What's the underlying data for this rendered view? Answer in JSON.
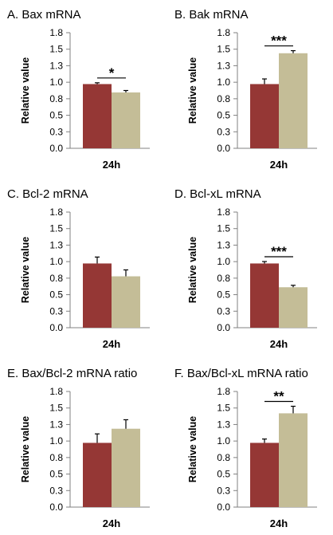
{
  "colors": {
    "control": "#953735",
    "treated": "#c4bd97",
    "axis": "#808080",
    "errorbar": "#000000"
  },
  "chart_data": [
    {
      "type": "bar",
      "title": "A. Bax mRNA",
      "ylabel": "Relative value",
      "xlabel": "",
      "categories": [
        "24h"
      ],
      "ylim": [
        0,
        1.8
      ],
      "yticks": [
        "0.0",
        "0.3",
        "0.5",
        "0.8",
        "1.0",
        "1.3",
        "1.5",
        "1.8"
      ],
      "series": [
        {
          "values": [
            1.0
          ],
          "errors": [
            0.02
          ]
        },
        {
          "values": [
            0.87
          ],
          "errors": [
            0.03
          ]
        }
      ],
      "significance": "*"
    },
    {
      "type": "bar",
      "title": "B. Bak mRNA",
      "ylabel": "Relative value",
      "xlabel": "",
      "categories": [
        "24h"
      ],
      "ylim": [
        0,
        1.8
      ],
      "yticks": [
        "0.0",
        "0.3",
        "0.5",
        "0.8",
        "1.0",
        "1.3",
        "1.5",
        "1.8"
      ],
      "series": [
        {
          "values": [
            1.0
          ],
          "errors": [
            0.08
          ]
        },
        {
          "values": [
            1.48
          ],
          "errors": [
            0.04
          ]
        }
      ],
      "significance": "***"
    },
    {
      "type": "bar",
      "title": "C. Bcl-2 mRNA",
      "ylabel": "Relative value",
      "xlabel": "",
      "categories": [
        "24h"
      ],
      "ylim": [
        0,
        1.8
      ],
      "yticks": [
        "0.0",
        "0.3",
        "0.5",
        "0.8",
        "1.0",
        "1.3",
        "1.5",
        "1.8"
      ],
      "series": [
        {
          "values": [
            1.0
          ],
          "errors": [
            0.1
          ]
        },
        {
          "values": [
            0.8
          ],
          "errors": [
            0.1
          ]
        }
      ],
      "significance": ""
    },
    {
      "type": "bar",
      "title": "D. Bcl-xL mRNA",
      "ylabel": "Relative value",
      "xlabel": "",
      "categories": [
        "24h"
      ],
      "ylim": [
        0,
        1.8
      ],
      "yticks": [
        "0.0",
        "0.3",
        "0.5",
        "0.8",
        "1.0",
        "1.3",
        "1.5",
        "1.8"
      ],
      "series": [
        {
          "values": [
            1.0
          ],
          "errors": [
            0.03
          ]
        },
        {
          "values": [
            0.63
          ],
          "errors": [
            0.03
          ]
        }
      ],
      "significance": "***"
    },
    {
      "type": "bar",
      "title": "E. Bax/Bcl-2 mRNA ratio",
      "ylabel": "Relative value",
      "xlabel": "",
      "categories": [
        "24h"
      ],
      "ylim": [
        0,
        1.8
      ],
      "yticks": [
        "0.0",
        "0.3",
        "0.5",
        "0.8",
        "1.0",
        "1.3",
        "1.5",
        "1.8"
      ],
      "series": [
        {
          "values": [
            1.0
          ],
          "errors": [
            0.14
          ]
        },
        {
          "values": [
            1.22
          ],
          "errors": [
            0.14
          ]
        }
      ],
      "significance": ""
    },
    {
      "type": "bar",
      "title": "F. Bax/Bcl-xL mRNA ratio",
      "ylabel": "Relative value",
      "xlabel": "",
      "categories": [
        "24h"
      ],
      "ylim": [
        0,
        1.8
      ],
      "yticks": [
        "0.0",
        "0.3",
        "0.5",
        "0.8",
        "1.0",
        "1.3",
        "1.5",
        "1.8"
      ],
      "series": [
        {
          "values": [
            1.0
          ],
          "errors": [
            0.06
          ]
        },
        {
          "values": [
            1.46
          ],
          "errors": [
            0.11
          ]
        }
      ],
      "significance": "**"
    }
  ]
}
